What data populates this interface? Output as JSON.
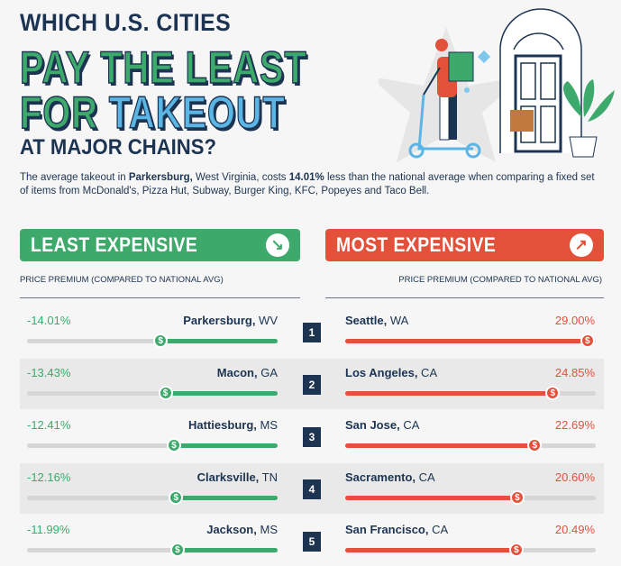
{
  "title": {
    "line1": "WHICH U.S. CITIES",
    "line2": "PAY THE LEAST",
    "line3a": "FOR ",
    "line3b": "TAKEOUT",
    "line4": "AT MAJOR CHAINS?"
  },
  "intro": {
    "p1": "The average takeout in ",
    "city": "Parkersburg,",
    "p2": " West Virginia, costs ",
    "pct": "14.01%",
    "p3": " less than the national average when comparing a fixed set of items from McDonald's, Pizza Hut, Subway, Burger King, KFC, Popeyes and Taco Bell."
  },
  "colors": {
    "green": "#3daa6c",
    "red": "#e4513a",
    "navy": "#1c3451",
    "blue": "#5bb5e5"
  },
  "chart_data": {
    "type": "bar",
    "title": "Which U.S. cities pay the least for takeout at major chains?",
    "ylabel": "PRICE PREMIUM (COMPARED TO NATIONAL AVG)",
    "ranks": [
      "1",
      "2",
      "3",
      "4",
      "5"
    ],
    "least": {
      "header": "LEAST EXPENSIVE",
      "subtitle": "PRICE PREMIUM (COMPARED TO NATIONAL AVG)",
      "items": [
        {
          "city": "Parkersburg,",
          "state": " WV",
          "value": -14.01,
          "label": "-14.01%"
        },
        {
          "city": "Macon,",
          "state": " GA",
          "value": -13.43,
          "label": "-13.43%"
        },
        {
          "city": "Hattiesburg,",
          "state": " MS",
          "value": -12.41,
          "label": "-12.41%"
        },
        {
          "city": "Clarksville,",
          "state": " TN",
          "value": -12.16,
          "label": "-12.16%"
        },
        {
          "city": "Jackson,",
          "state": " MS",
          "value": -11.99,
          "label": "-11.99%"
        }
      ]
    },
    "most": {
      "header": "MOST EXPENSIVE",
      "subtitle": "PRICE PREMIUM (COMPARED TO NATIONAL AVG)",
      "items": [
        {
          "city": "Seattle,",
          "state": " WA",
          "value": 29.0,
          "label": "29.00%"
        },
        {
          "city": "Los Angeles,",
          "state": " CA",
          "value": 24.85,
          "label": "24.85%"
        },
        {
          "city": "San Jose,",
          "state": " CA",
          "value": 22.69,
          "label": "22.69%"
        },
        {
          "city": "Sacramento,",
          "state": " CA",
          "value": 20.6,
          "label": "20.60%"
        },
        {
          "city": "San Francisco,",
          "state": " CA",
          "value": 20.49,
          "label": "20.49%"
        }
      ]
    },
    "range": [
      0,
      30
    ],
    "marker_symbol": "$"
  }
}
